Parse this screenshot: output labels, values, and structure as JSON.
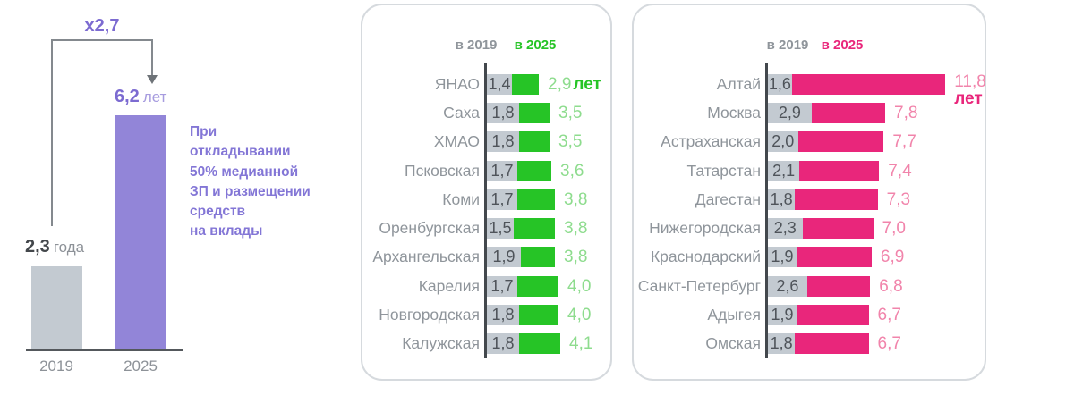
{
  "left_panel": {
    "multiplier_label": "x2,7",
    "note": "При\nоткладывании\n50% медианной\nЗП и размещении\nсредств\nна вклады",
    "bar_2019": {
      "value": "2,3",
      "unit": "года",
      "year_label": "2019"
    },
    "bar_2025": {
      "value": "6,2",
      "unit": "лет",
      "year_label": "2025"
    }
  },
  "green_panel": {
    "legend_2019": "в 2019",
    "legend_2025": "в 2025",
    "rows": [
      {
        "region": "ЯНАО",
        "v2019": "1,4",
        "v2025": "2,9",
        "suffix": "лет"
      },
      {
        "region": "Саха",
        "v2019": "1,8",
        "v2025": "3,5"
      },
      {
        "region": "ХМАО",
        "v2019": "1,8",
        "v2025": "3,5"
      },
      {
        "region": "Псковская",
        "v2019": "1,7",
        "v2025": "3,6"
      },
      {
        "region": "Коми",
        "v2019": "1,7",
        "v2025": "3,8"
      },
      {
        "region": "Оренбургская",
        "v2019": "1,5",
        "v2025": "3,8"
      },
      {
        "region": "Архангельская",
        "v2019": "1,9",
        "v2025": "3,8"
      },
      {
        "region": "Карелия",
        "v2019": "1,7",
        "v2025": "4,0"
      },
      {
        "region": "Новгородская",
        "v2019": "1,8",
        "v2025": "4,0"
      },
      {
        "region": "Калужская",
        "v2019": "1,8",
        "v2025": "4,1"
      }
    ]
  },
  "pink_panel": {
    "legend_2019": "в 2019",
    "legend_2025": "в 2025",
    "rows": [
      {
        "region": "Алтай",
        "v2019": "1,6",
        "v2025": "11,8",
        "suffix": "лет"
      },
      {
        "region": "Москва",
        "v2019": "2,9",
        "v2025": "7,8"
      },
      {
        "region": "Астраханская",
        "v2019": "2,0",
        "v2025": "7,7"
      },
      {
        "region": "Татарстан",
        "v2019": "2,1",
        "v2025": "7,4"
      },
      {
        "region": "Дагестан",
        "v2019": "1,8",
        "v2025": "7,3"
      },
      {
        "region": "Нижегородская",
        "v2019": "2,3",
        "v2025": "7,0"
      },
      {
        "region": "Краснодарский",
        "v2019": "1,9",
        "v2025": "6,9"
      },
      {
        "region": "Санкт-Петербург",
        "v2019": "2,6",
        "v2025": "6,8"
      },
      {
        "region": "Адыгея",
        "v2019": "1,9",
        "v2025": "6,7"
      },
      {
        "region": "Омская",
        "v2019": "1,8",
        "v2025": "6,7"
      }
    ]
  },
  "colors": {
    "purple_bar": "#9285d8",
    "purple_text": "#7c6bd1",
    "purple_light_text": "#a79cdf",
    "green_bar": "#26c426",
    "green_light_text": "#8edc8e",
    "pink_bar": "#e9267b",
    "pink_light_text": "#f184ab",
    "gray_bar": "#c3cad1",
    "gray_text": "#8d9298",
    "dark_text": "#43474b"
  },
  "chart_data": [
    {
      "type": "bar",
      "title": "x2,7",
      "categories": [
        "2019",
        "2025"
      ],
      "values": [
        2.3,
        6.2
      ],
      "value_labels": [
        "2,3 года",
        "6,2 лет"
      ],
      "ylabel": "лет",
      "ylim": [
        0,
        6.5
      ],
      "annotation": "При откладывании 50% медианной ЗП и размещении средств на вклады",
      "orientation": "vertical",
      "grid": false
    },
    {
      "type": "bar",
      "orientation": "horizontal",
      "legend": [
        "в 2019",
        "в 2025"
      ],
      "legend_position": "top",
      "unit": "лет",
      "categories": [
        "ЯНАО",
        "Саха",
        "ХМАО",
        "Псковская",
        "Коми",
        "Оренбургская",
        "Архангельская",
        "Карелия",
        "Новгородская",
        "Калужская"
      ],
      "series": [
        {
          "name": "в 2019",
          "values": [
            1.4,
            1.8,
            1.8,
            1.7,
            1.7,
            1.5,
            1.9,
            1.7,
            1.8,
            1.8
          ]
        },
        {
          "name": "в 2025",
          "values": [
            2.9,
            3.5,
            3.5,
            3.6,
            3.8,
            3.8,
            3.8,
            4.0,
            4.0,
            4.1
          ]
        }
      ],
      "xlim": [
        0,
        4.5
      ],
      "grid": false
    },
    {
      "type": "bar",
      "orientation": "horizontal",
      "legend": [
        "в 2019",
        "в 2025"
      ],
      "legend_position": "top",
      "unit": "лет",
      "categories": [
        "Алтай",
        "Москва",
        "Астраханская",
        "Татарстан",
        "Дагестан",
        "Нижегородская",
        "Краснодарский",
        "Санкт-Петербург",
        "Адыгея",
        "Омская"
      ],
      "series": [
        {
          "name": "в 2019",
          "values": [
            1.6,
            2.9,
            2.0,
            2.1,
            1.8,
            2.3,
            1.9,
            2.6,
            1.9,
            1.8
          ]
        },
        {
          "name": "в 2025",
          "values": [
            11.8,
            7.8,
            7.7,
            7.4,
            7.3,
            7.0,
            6.9,
            6.8,
            6.7,
            6.7
          ]
        }
      ],
      "xlim": [
        0,
        12
      ],
      "grid": false
    }
  ]
}
